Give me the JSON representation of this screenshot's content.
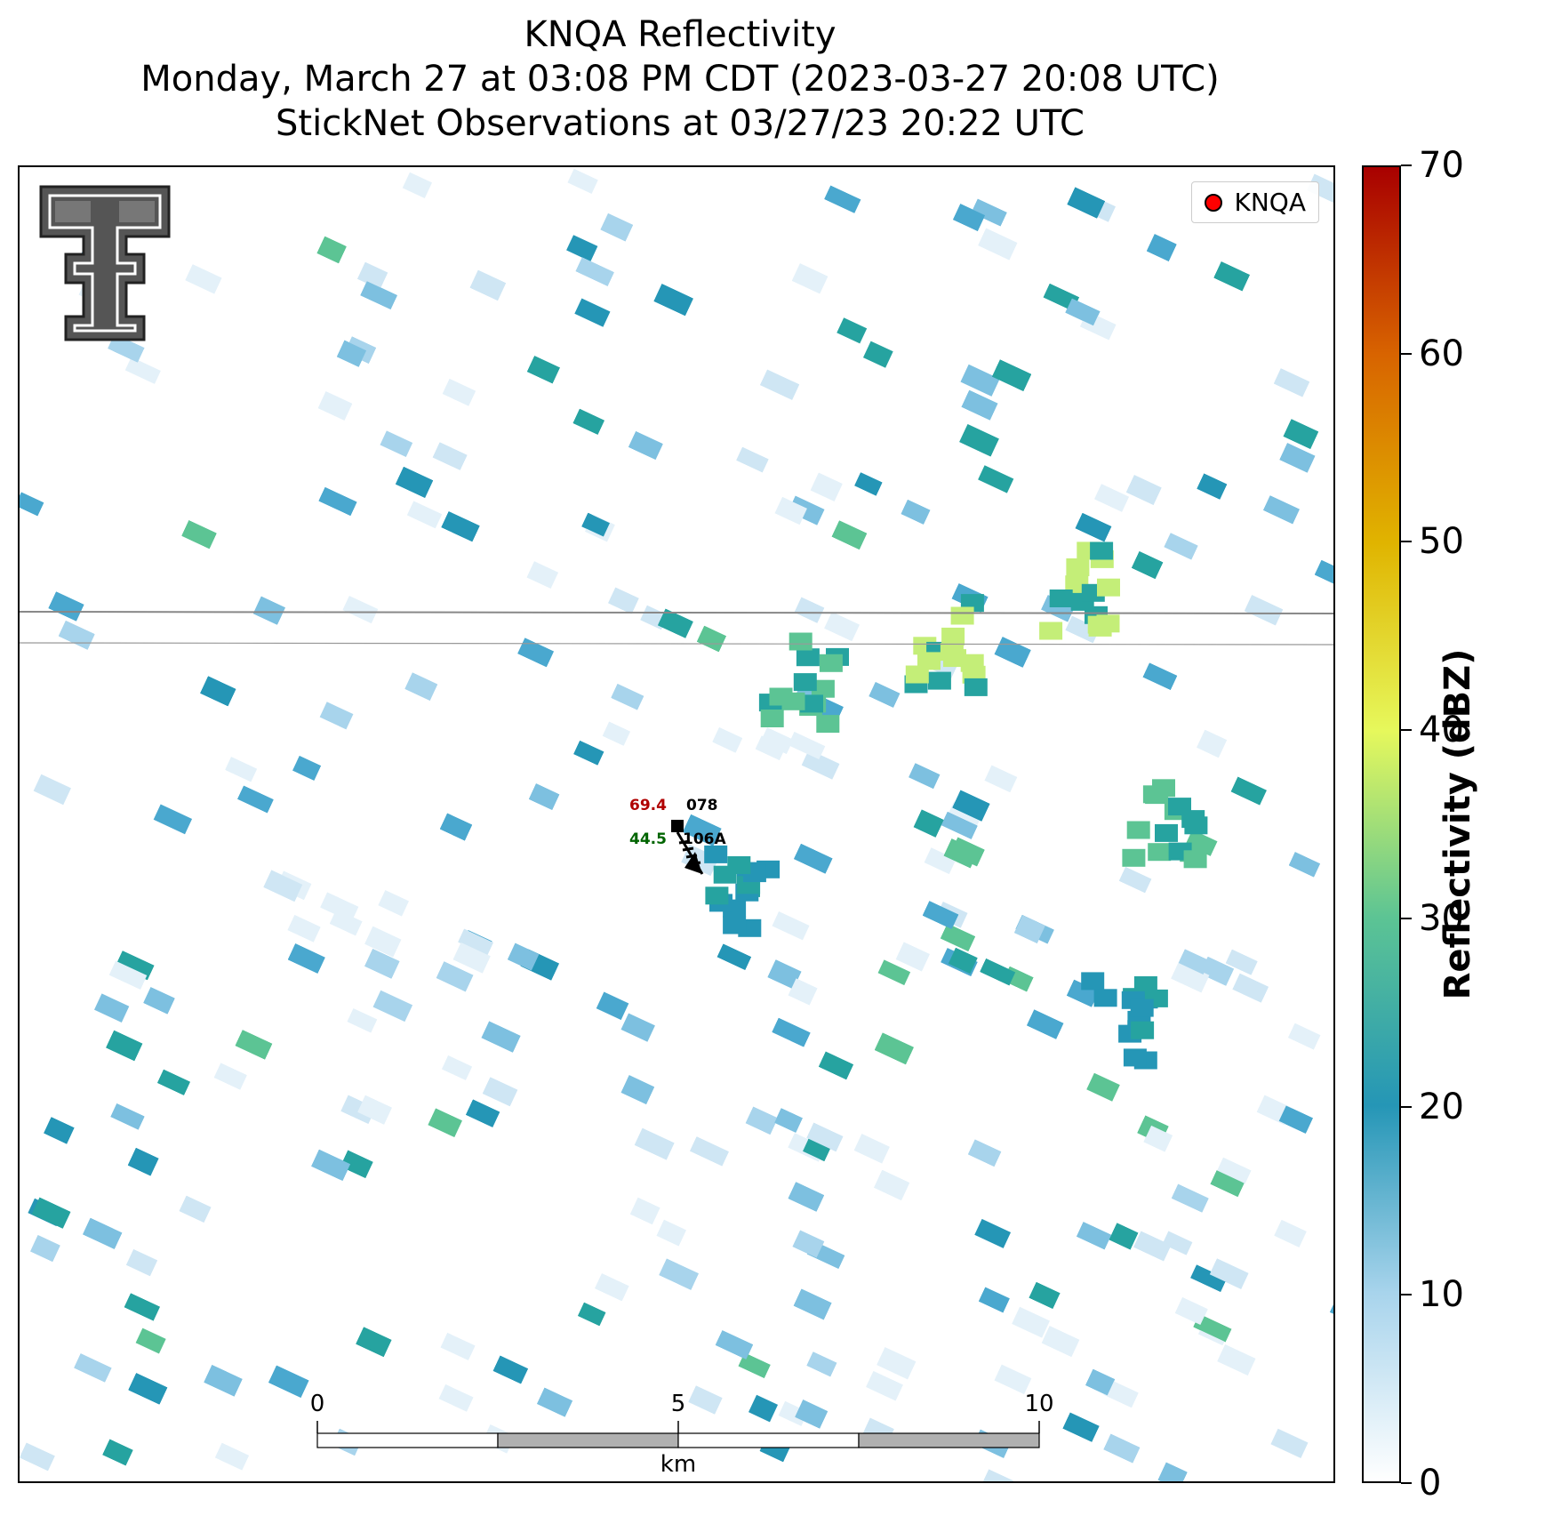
{
  "title": {
    "line1": "KNQA Reflectivity",
    "line2": "Monday, March 27 at 03:08 PM CDT (2023-03-27 20:08 UTC)",
    "line3": "StickNet Observations at 03/27/23 20:22 UTC"
  },
  "legend": {
    "label": "KNQA",
    "marker_color": "#ff0000"
  },
  "logo": {
    "name": "Texas Tech double-T logo"
  },
  "colorbar": {
    "label": "Reflectivity (dBZ)",
    "ticks": [
      "0",
      "10",
      "20",
      "30",
      "40",
      "50",
      "60",
      "70"
    ],
    "colors": [
      "#ffffff",
      "#a8d4ec",
      "#2596b6",
      "#5cc494",
      "#e6f85c",
      "#e0b400",
      "#d86400",
      "#a80000"
    ]
  },
  "scalebar": {
    "unit": "km",
    "labels": [
      "0",
      "5",
      "10"
    ]
  },
  "station": {
    "id_top": "078",
    "id_bottom": "106A",
    "temperature": "69.4",
    "dewpoint": "44.5",
    "temp_color": "#b00000",
    "dew_color": "#006400"
  }
}
